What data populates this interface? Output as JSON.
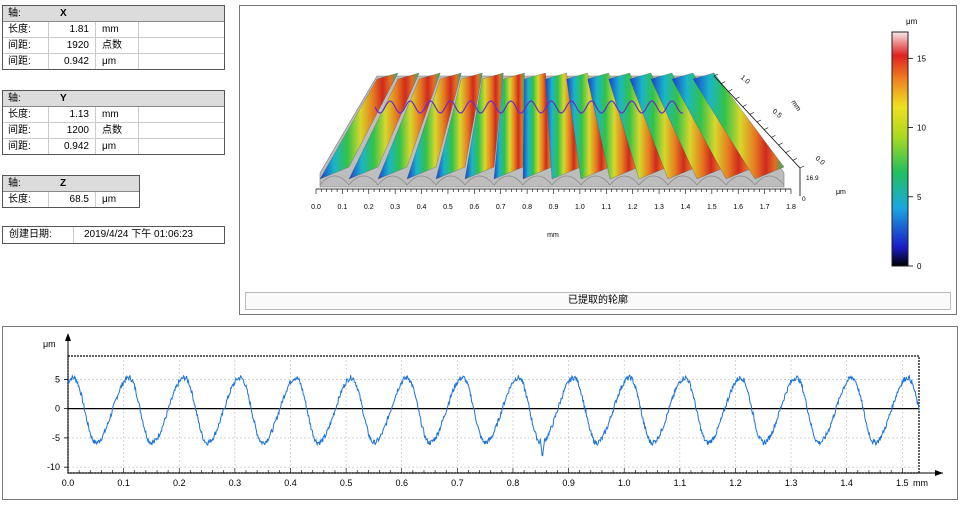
{
  "info_x": {
    "axis_label": "轴:",
    "axis": "X",
    "rows": [
      {
        "label": "长度:",
        "value": "1.81",
        "unit": "mm"
      },
      {
        "label": "间距:",
        "value": "1920",
        "unit": "点数"
      },
      {
        "label": "间距:",
        "value": "0.942",
        "unit": "μm"
      }
    ]
  },
  "info_y": {
    "axis_label": "轴:",
    "axis": "Y",
    "rows": [
      {
        "label": "长度:",
        "value": "1.13",
        "unit": "mm"
      },
      {
        "label": "间距:",
        "value": "1200",
        "unit": "点数"
      },
      {
        "label": "间距:",
        "value": "0.942",
        "unit": "μm"
      }
    ]
  },
  "info_z": {
    "axis_label": "轴:",
    "axis": "Z",
    "rows": [
      {
        "label": "长度:",
        "value": "68.5",
        "unit": "μm"
      }
    ]
  },
  "created": {
    "label": "创建日期:",
    "value": "2019/4/24 下午 01:06:23"
  },
  "view3d": {
    "caption": "已提取的轮廓",
    "x_ticks": [
      "0.0",
      "0.1",
      "0.2",
      "0.3",
      "0.4",
      "0.5",
      "0.6",
      "0.7",
      "0.8",
      "0.9",
      "1.0",
      "1.1",
      "1.2",
      "1.3",
      "1.4",
      "1.5",
      "1.6",
      "1.7",
      "1.8"
    ],
    "x_unit": "mm",
    "y_ticks": [
      "0.0",
      "0.5",
      "1.0"
    ],
    "y_unit": "mm",
    "z_ticks": [
      "0",
      "16.9"
    ],
    "z_unit": "μm",
    "colorbar": {
      "unit": "μm",
      "ticks": [
        "0",
        "5",
        "10",
        "15"
      ]
    }
  },
  "chart_data": {
    "type": "line",
    "ylabel": "μm",
    "xlabel": "mm",
    "xlim": [
      0,
      1.53
    ],
    "ylim": [
      -11,
      9
    ],
    "x_ticks": [
      "0.0",
      "0.1",
      "0.2",
      "0.3",
      "0.4",
      "0.5",
      "0.6",
      "0.7",
      "0.8",
      "0.9",
      "1.0",
      "1.1",
      "1.2",
      "1.3",
      "1.4",
      "1.5"
    ],
    "y_ticks": [
      "5",
      "0",
      "-5",
      "-10"
    ],
    "grid": true,
    "series": [
      {
        "period": 0.1,
        "peak": 5.3,
        "trough": -5.8,
        "phase_peak_x": 0.01,
        "dip": {
          "x": 0.853,
          "y": -8.5
        },
        "x": [
          0.0,
          0.01,
          0.03,
          0.05,
          0.07,
          0.09,
          0.11,
          0.13,
          0.15,
          0.17,
          0.19,
          0.21,
          0.23,
          0.25,
          0.27,
          0.29,
          0.31,
          0.33,
          0.35,
          0.37,
          0.39,
          0.41,
          0.43,
          0.45,
          0.47,
          0.49,
          0.51,
          0.53,
          0.55,
          0.57,
          0.59,
          0.61,
          0.63,
          0.65,
          0.67,
          0.69,
          0.71,
          0.73,
          0.75,
          0.77,
          0.79,
          0.81,
          0.83,
          0.85,
          0.853,
          0.856,
          0.87,
          0.89,
          0.91,
          0.93,
          0.95,
          0.97,
          0.99,
          1.01,
          1.03,
          1.05,
          1.07,
          1.09,
          1.11,
          1.13,
          1.15,
          1.17,
          1.19,
          1.21,
          1.23,
          1.25,
          1.27,
          1.29,
          1.31,
          1.33,
          1.35,
          1.37,
          1.39,
          1.41,
          1.43,
          1.45,
          1.47,
          1.49,
          1.51,
          1.53
        ],
        "y": [
          4.8,
          5.3,
          1.5,
          -5.8,
          -1.0,
          3.5,
          5.3,
          0.5,
          -5.8,
          -1.5,
          3.8,
          5.3,
          0.5,
          -5.6,
          -1.2,
          4.0,
          5.3,
          0.3,
          -5.5,
          -1.5,
          4.0,
          5.3,
          0.5,
          -5.6,
          -1.0,
          3.8,
          5.3,
          0.2,
          -5.5,
          -1.0,
          4.0,
          5.3,
          0.4,
          -5.6,
          -1.2,
          3.8,
          5.2,
          0.5,
          -5.5,
          -1.0,
          4.0,
          5.1,
          0.0,
          -5.4,
          -8.5,
          -5.2,
          -1.0,
          4.0,
          5.2,
          0.4,
          -5.5,
          -1.2,
          3.9,
          5.3,
          0.3,
          -5.6,
          -1.1,
          4.0,
          5.2,
          0.4,
          -5.5,
          -1.2,
          3.9,
          5.2,
          0.4,
          -5.6,
          -1.1,
          4.0,
          5.2,
          0.3,
          -5.5,
          -1.0,
          3.9,
          5.3,
          0.4,
          -5.6,
          -1.0,
          4.0,
          5.2,
          2.0
        ]
      }
    ]
  }
}
